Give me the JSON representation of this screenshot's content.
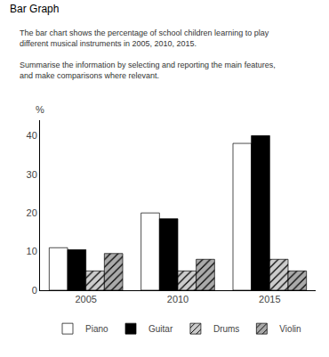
{
  "chart_data": {
    "type": "bar",
    "title": "Bar Graph",
    "annotations": [
      "The bar chart shows the percentage of school children learning to play\ndifferent musical instruments in 2005, 2010, 2015.",
      "Summarise the information by selecting and reporting the main features,\nand make comparisons where relevant."
    ],
    "ylabel": "%",
    "categories": [
      "2005",
      "2010",
      "2015"
    ],
    "series": [
      {
        "name": "Piano",
        "color": "#ffffff",
        "values": [
          11,
          20,
          38
        ]
      },
      {
        "name": "Guitar",
        "color": "#000000",
        "values": [
          10.5,
          18.5,
          40
        ]
      },
      {
        "name": "Drums",
        "color": "#cccccc",
        "marker": "hatched",
        "values": [
          5,
          5,
          8
        ]
      },
      {
        "name": "Violin",
        "color": "#aaaaaa",
        "marker": "hatched",
        "values": [
          9.5,
          8,
          5
        ]
      }
    ],
    "ylim": [
      0,
      44
    ],
    "yticks": [
      0,
      10,
      20,
      30,
      40
    ],
    "grid": false,
    "legend": "bottom"
  }
}
